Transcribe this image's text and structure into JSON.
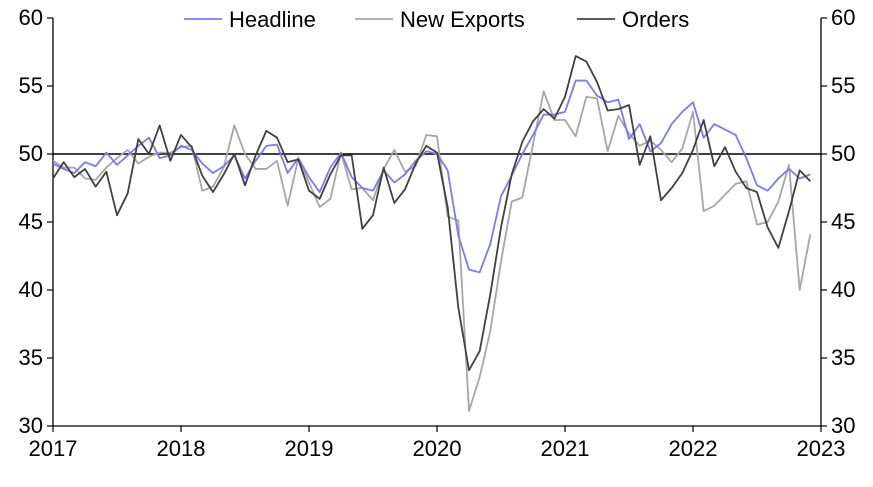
{
  "chart_data": {
    "type": "line",
    "title": "",
    "xlabel": "",
    "ylabel": "",
    "ylim": [
      30,
      60
    ],
    "y_ticks": [
      30,
      35,
      40,
      45,
      50,
      55,
      60
    ],
    "x_range": [
      2017,
      2023
    ],
    "x_ticks": [
      "2017",
      "2018",
      "2019",
      "2020",
      "2021",
      "2022",
      "2023"
    ],
    "reference_line": 50,
    "grid": false,
    "legend_position": "top",
    "start_year": 2017,
    "series": [
      {
        "name": "Headline",
        "color": "#7b7bea",
        "values": [
          49.3,
          48.9,
          48.6,
          49.4,
          49.1,
          50.1,
          49.2,
          49.9,
          50.6,
          51.2,
          49.7,
          49.9,
          50.6,
          50.3,
          49.3,
          48.6,
          49.1,
          49.9,
          48.2,
          49.5,
          50.6,
          50.7,
          48.6,
          49.7,
          48.3,
          47.2,
          49.0,
          50.1,
          48.3,
          47.5,
          47.3,
          48.8,
          47.9,
          48.5,
          49.5,
          50.2,
          50.0,
          48.8,
          44.0,
          41.5,
          41.3,
          43.4,
          46.9,
          48.4,
          50.0,
          51.4,
          52.9,
          52.9,
          53.1,
          55.4,
          55.4,
          54.3,
          53.8,
          54.0,
          51.1,
          52.2,
          50.2,
          50.8,
          52.2,
          53.1,
          53.8,
          51.2,
          52.2,
          51.8,
          51.4,
          49.7,
          47.7,
          47.3,
          48.2,
          48.9,
          48.2,
          48.5
        ]
      },
      {
        "name": "New Exports",
        "color": "#a6a6a6",
        "values": [
          49.5,
          49.0,
          49.0,
          48.2,
          48.1,
          49.0,
          49.7,
          50.3,
          49.3,
          49.8,
          50.1,
          50.1,
          50.5,
          50.6,
          47.3,
          47.6,
          49.0,
          52.1,
          50.0,
          48.9,
          48.9,
          49.5,
          46.2,
          49.7,
          47.9,
          46.1,
          46.7,
          50.1,
          47.4,
          47.5,
          46.6,
          48.9,
          50.3,
          48.7,
          49.1,
          51.4,
          51.3,
          45.4,
          45.1,
          31.1,
          33.6,
          37.0,
          42.1,
          46.5,
          46.8,
          50.7,
          54.6,
          52.5,
          52.5,
          51.3,
          54.2,
          54.1,
          50.2,
          52.8,
          51.5,
          50.6,
          51.0,
          50.3,
          49.4,
          50.4,
          53.1,
          45.8,
          46.2,
          47.0,
          47.8,
          48.0,
          44.8,
          45.0,
          46.5,
          49.2,
          40.0,
          44.1
        ]
      },
      {
        "name": "Orders",
        "color": "#404040",
        "values": [
          48.2,
          49.4,
          48.3,
          48.9,
          47.6,
          48.7,
          45.5,
          47.1,
          51.1,
          50.0,
          52.1,
          49.5,
          51.4,
          50.5,
          48.4,
          47.2,
          48.5,
          50.0,
          47.7,
          49.9,
          51.7,
          51.2,
          49.4,
          49.6,
          47.3,
          46.7,
          48.5,
          49.9,
          49.9,
          44.5,
          45.5,
          49.0,
          46.4,
          47.4,
          49.3,
          50.6,
          50.1,
          46.1,
          38.7,
          34.1,
          35.5,
          39.7,
          44.6,
          48.5,
          50.9,
          52.4,
          53.3,
          52.6,
          54.2,
          57.2,
          56.8,
          55.3,
          53.2,
          53.3,
          53.6,
          49.2,
          51.3,
          46.6,
          47.5,
          48.6,
          50.3,
          52.5,
          49.1,
          50.5,
          48.7,
          47.5,
          47.2,
          44.6,
          43.1,
          45.8,
          48.8,
          48.0
        ]
      }
    ]
  }
}
